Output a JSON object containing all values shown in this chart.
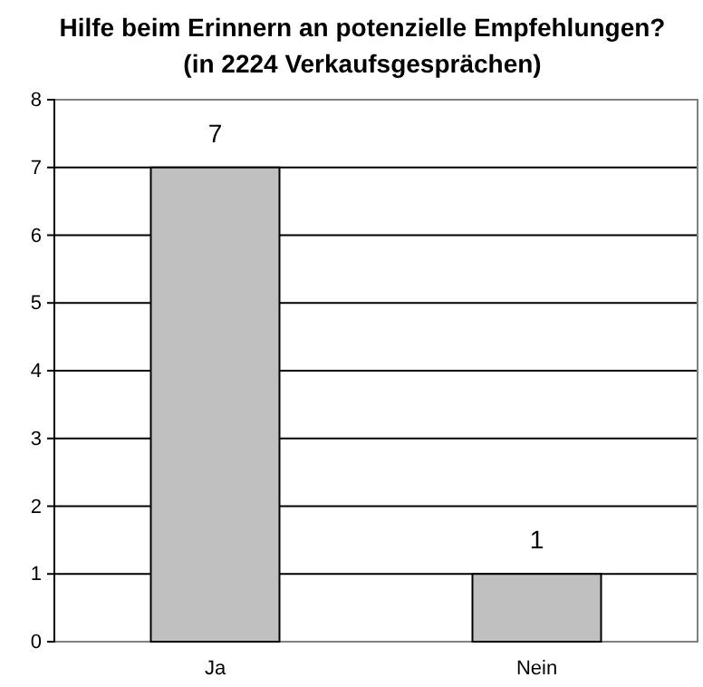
{
  "chart_data": {
    "type": "bar",
    "title": "Hilfe beim Erinnern an potenzielle Empfehlungen?",
    "subtitle": "(in 2224 Verkaufsgesprächen)",
    "categories": [
      "Ja",
      "Nein"
    ],
    "values": [
      7,
      1
    ],
    "color": "#c0c0c0",
    "ylim": [
      0,
      8
    ],
    "yticks": [
      0,
      1,
      2,
      3,
      4,
      5,
      6,
      7,
      8
    ],
    "grid": "y",
    "data_labels": true
  }
}
